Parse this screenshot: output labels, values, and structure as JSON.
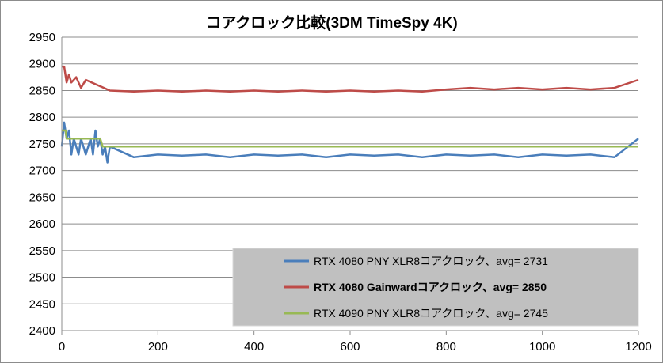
{
  "chart_data": {
    "type": "line",
    "title": "コアクロック比較(3DM TimeSpy 4K)",
    "xlabel": "",
    "ylabel": "",
    "xlim": [
      0,
      1200
    ],
    "ylim": [
      2400,
      2950
    ],
    "x_ticks": [
      0,
      200,
      400,
      600,
      800,
      1000,
      1200
    ],
    "y_ticks": [
      2400,
      2450,
      2500,
      2550,
      2600,
      2650,
      2700,
      2750,
      2800,
      2850,
      2900,
      2950
    ],
    "grid": true,
    "legend_position": "bottom-right",
    "legend_background": "#c0c0c0",
    "series": [
      {
        "name": "RTX 4080 PNY XLR8コアクロック、avg= 2731",
        "color": "#4a7ebb",
        "bold": false,
        "x": [
          0,
          5,
          10,
          15,
          20,
          25,
          30,
          35,
          40,
          45,
          50,
          55,
          60,
          65,
          70,
          75,
          80,
          85,
          90,
          95,
          100,
          150,
          200,
          250,
          300,
          350,
          400,
          450,
          500,
          550,
          600,
          650,
          700,
          750,
          800,
          850,
          900,
          950,
          1000,
          1050,
          1100,
          1150,
          1200
        ],
        "y": [
          2745,
          2790,
          2760,
          2775,
          2730,
          2760,
          2745,
          2730,
          2760,
          2745,
          2730,
          2745,
          2760,
          2730,
          2775,
          2745,
          2760,
          2730,
          2745,
          2715,
          2745,
          2725,
          2730,
          2728,
          2730,
          2725,
          2730,
          2728,
          2730,
          2725,
          2730,
          2728,
          2730,
          2725,
          2730,
          2728,
          2730,
          2725,
          2730,
          2728,
          2730,
          2725,
          2760
        ]
      },
      {
        "name": "RTX 4080 Gainwardコアクロック、avg= 2850",
        "color": "#be4b48",
        "bold": true,
        "x": [
          0,
          5,
          10,
          15,
          20,
          30,
          40,
          50,
          100,
          150,
          200,
          250,
          300,
          350,
          400,
          450,
          500,
          550,
          600,
          650,
          700,
          750,
          800,
          850,
          900,
          950,
          1000,
          1050,
          1100,
          1150,
          1200
        ],
        "y": [
          2895,
          2895,
          2865,
          2880,
          2865,
          2875,
          2855,
          2870,
          2850,
          2848,
          2850,
          2848,
          2850,
          2848,
          2850,
          2848,
          2850,
          2848,
          2850,
          2848,
          2850,
          2848,
          2852,
          2855,
          2852,
          2855,
          2852,
          2855,
          2852,
          2855,
          2870
        ]
      },
      {
        "name": "RTX 4090 PNY XLR8コアクロック、avg= 2745",
        "color": "#98b954",
        "bold": false,
        "x": [
          0,
          8,
          10,
          80,
          85,
          1200
        ],
        "y": [
          2775,
          2775,
          2760,
          2760,
          2745,
          2745
        ]
      }
    ]
  }
}
